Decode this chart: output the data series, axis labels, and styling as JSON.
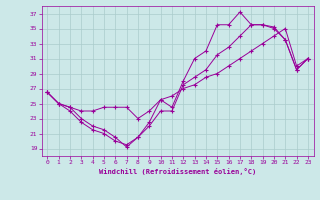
{
  "xlabel": "Windchill (Refroidissement éolien,°C)",
  "bg_color": "#cce8e8",
  "line_color": "#990099",
  "grid_color": "#aacccc",
  "xlim": [
    -0.5,
    23.5
  ],
  "ylim": [
    18,
    38
  ],
  "xticks": [
    0,
    1,
    2,
    3,
    4,
    5,
    6,
    7,
    8,
    9,
    10,
    11,
    12,
    13,
    14,
    15,
    16,
    17,
    18,
    19,
    20,
    21,
    22,
    23
  ],
  "yticks": [
    19,
    21,
    23,
    25,
    27,
    29,
    31,
    33,
    35,
    37
  ],
  "series1": [
    [
      0,
      26.5
    ],
    [
      1,
      25.0
    ],
    [
      2,
      24.5
    ],
    [
      3,
      23.0
    ],
    [
      4,
      22.0
    ],
    [
      5,
      21.5
    ],
    [
      6,
      20.5
    ],
    [
      7,
      19.2
    ],
    [
      8,
      20.5
    ],
    [
      9,
      22.5
    ],
    [
      10,
      25.5
    ],
    [
      11,
      24.5
    ],
    [
      12,
      28.0
    ],
    [
      13,
      31.0
    ],
    [
      14,
      32.0
    ],
    [
      15,
      35.5
    ],
    [
      16,
      35.5
    ],
    [
      17,
      37.2
    ],
    [
      18,
      35.5
    ],
    [
      19,
      35.5
    ],
    [
      20,
      35.2
    ],
    [
      21,
      33.5
    ],
    [
      22,
      29.5
    ],
    [
      23,
      31.0
    ]
  ],
  "series2": [
    [
      0,
      26.5
    ],
    [
      1,
      25.0
    ],
    [
      2,
      24.5
    ],
    [
      3,
      24.0
    ],
    [
      4,
      24.0
    ],
    [
      5,
      24.5
    ],
    [
      6,
      24.5
    ],
    [
      7,
      24.5
    ],
    [
      8,
      23.0
    ],
    [
      9,
      24.0
    ],
    [
      10,
      25.5
    ],
    [
      11,
      26.0
    ],
    [
      12,
      27.0
    ],
    [
      13,
      27.5
    ],
    [
      14,
      28.5
    ],
    [
      15,
      29.0
    ],
    [
      16,
      30.0
    ],
    [
      17,
      31.0
    ],
    [
      18,
      32.0
    ],
    [
      19,
      33.0
    ],
    [
      20,
      34.0
    ],
    [
      21,
      35.0
    ],
    [
      22,
      30.0
    ],
    [
      23,
      31.0
    ]
  ],
  "series3": [
    [
      0,
      26.5
    ],
    [
      1,
      25.0
    ],
    [
      2,
      24.0
    ],
    [
      3,
      22.5
    ],
    [
      4,
      21.5
    ],
    [
      5,
      21.0
    ],
    [
      6,
      20.0
    ],
    [
      7,
      19.5
    ],
    [
      8,
      20.5
    ],
    [
      9,
      22.0
    ],
    [
      10,
      24.0
    ],
    [
      11,
      24.0
    ],
    [
      12,
      27.5
    ],
    [
      13,
      28.5
    ],
    [
      14,
      29.5
    ],
    [
      15,
      31.5
    ],
    [
      16,
      32.5
    ],
    [
      17,
      34.0
    ],
    [
      18,
      35.5
    ],
    [
      19,
      35.5
    ],
    [
      20,
      35.0
    ],
    [
      21,
      33.5
    ],
    [
      22,
      29.5
    ],
    [
      23,
      31.0
    ]
  ]
}
